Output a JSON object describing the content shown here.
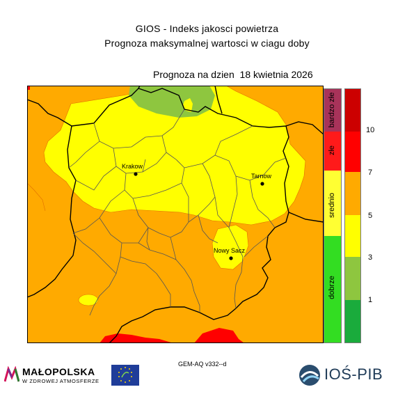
{
  "header": {
    "title": "GIOS - Indeks jakosci powietrza",
    "subtitle": "Prognoza maksymalnej wartosci w ciagu doby",
    "forecast_date": "Prognoza na dzien  18 kwietnia 2026"
  },
  "map": {
    "cities": [
      {
        "name": "Krakow"
      },
      {
        "name": "Tarnow"
      },
      {
        "name": "Nowy Sacz"
      }
    ]
  },
  "legend": {
    "categories": [
      "bardzo złe",
      "złe",
      "srednio",
      "dobrze"
    ],
    "category_colors": [
      "#a8335a",
      "#ff1a1a",
      "#ffff33",
      "#33dd22"
    ],
    "scale_colors": [
      "#cc0000",
      "#ff0000",
      "#ffaa00",
      "#ffff00",
      "#8ec63f",
      "#1aab3c"
    ],
    "scale_labels": [
      "10",
      "7",
      "5",
      "3",
      "1"
    ]
  },
  "colors": {
    "orange": "#ffaa00",
    "yellow": "#ffff00",
    "green": "#8ec63f",
    "red": "#ff0000"
  },
  "footer": {
    "model": "GEM-AQ v332--d",
    "malopolska_name": "MAŁOPOLSKA",
    "malopolska_tagline": "W ZDROWEJ ATMOSFERZE",
    "ios_name": "IOŚ-PIB"
  }
}
